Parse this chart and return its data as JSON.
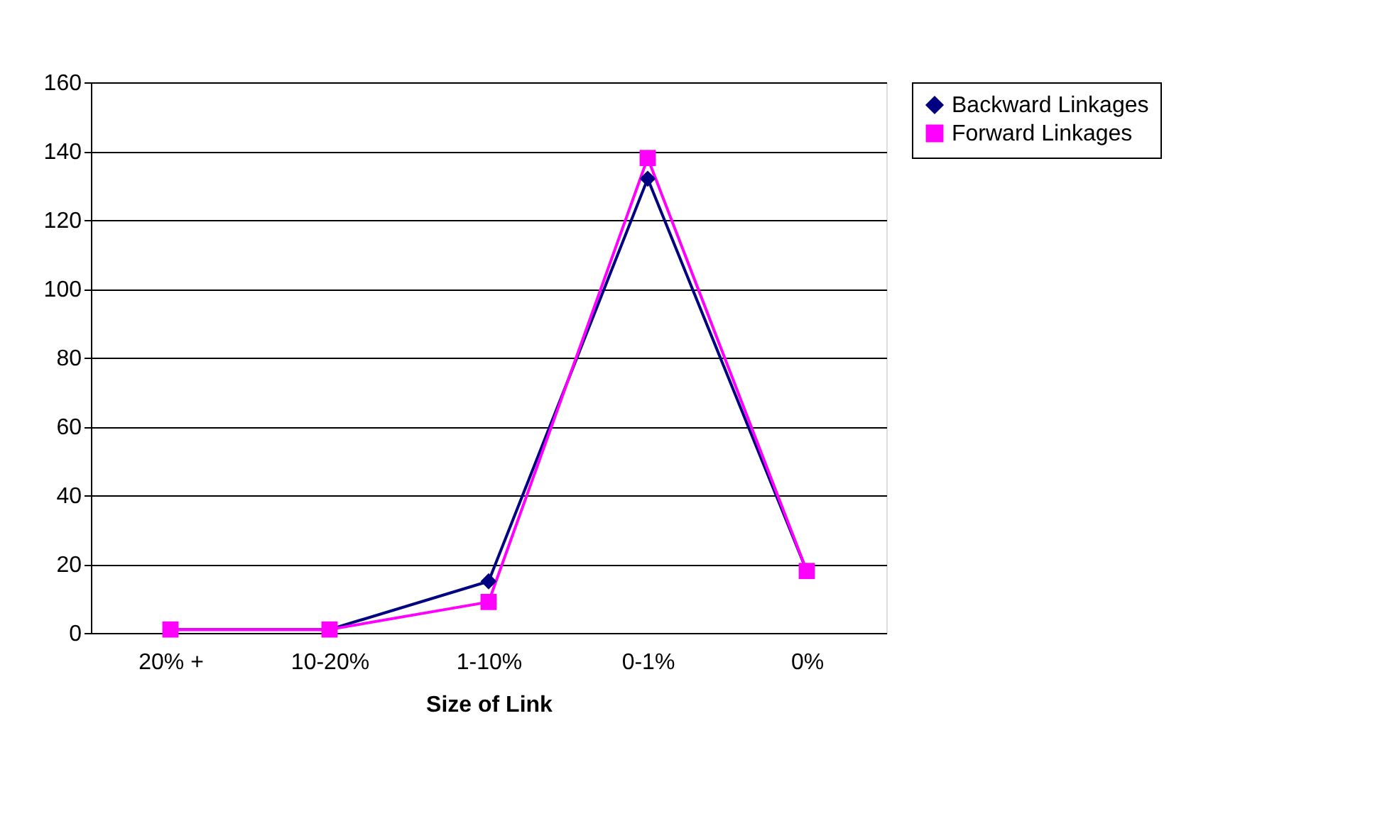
{
  "chart_data": {
    "type": "line",
    "xlabel": "Size of Link",
    "categories": [
      "20% +",
      "10-20%",
      "1-10%",
      "0-1%",
      "0%"
    ],
    "series": [
      {
        "name": "Backward Linkages",
        "color": "#000080",
        "marker": "diamond",
        "values": [
          1,
          1,
          15,
          132,
          18
        ]
      },
      {
        "name": "Forward Linkages",
        "color": "#ff00ff",
        "marker": "square",
        "values": [
          1,
          1,
          9,
          138,
          18
        ]
      }
    ],
    "ylim": [
      0,
      160
    ],
    "yticks": [
      0,
      20,
      40,
      60,
      80,
      100,
      120,
      140,
      160
    ],
    "grid": "y",
    "legend": "right"
  }
}
